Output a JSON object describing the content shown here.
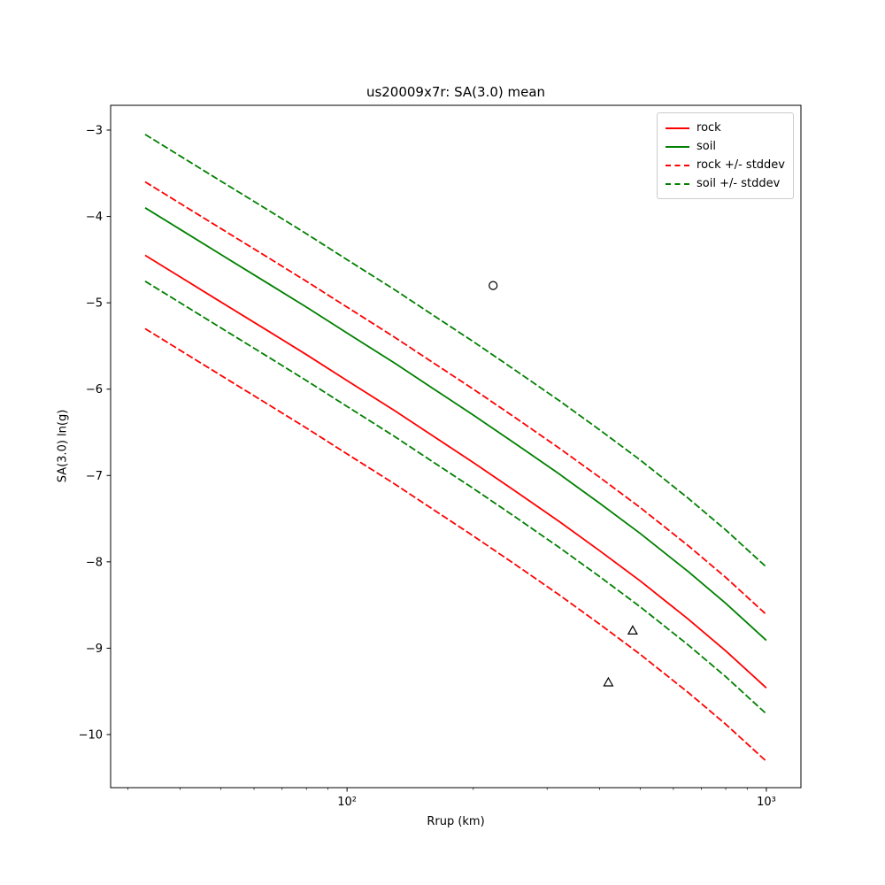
{
  "chart_data": {
    "type": "line",
    "title": "us20009x7r: SA(3.0) mean",
    "xlabel": "Rrup (km)",
    "ylabel": "SA(3.0) ln(g)",
    "x_scale": "log",
    "grid": false,
    "xlim": [
      27.3,
      1209
    ],
    "ylim": [
      -10.615,
      -2.713
    ],
    "x": [
      33,
      40,
      50,
      65,
      80,
      100,
      130,
      160,
      200,
      250,
      320,
      400,
      500,
      650,
      800,
      1000
    ],
    "series": [
      {
        "name": "rock",
        "color": "#ff0000",
        "style": "solid",
        "values": [
          -4.45,
          -4.7,
          -4.99,
          -5.33,
          -5.6,
          -5.9,
          -6.25,
          -6.54,
          -6.85,
          -7.17,
          -7.53,
          -7.87,
          -8.22,
          -8.66,
          -9.03,
          -9.46
        ]
      },
      {
        "name": "soil",
        "color": "#008000",
        "style": "solid",
        "values": [
          -3.9,
          -4.15,
          -4.44,
          -4.78,
          -5.05,
          -5.35,
          -5.7,
          -5.99,
          -6.3,
          -6.62,
          -6.98,
          -7.32,
          -7.67,
          -8.11,
          -8.48,
          -8.91
        ]
      },
      {
        "name": "rock + stddev",
        "color": "#ff0000",
        "style": "dashed",
        "values": [
          -3.6,
          -3.85,
          -4.14,
          -4.48,
          -4.75,
          -5.05,
          -5.4,
          -5.69,
          -6.0,
          -6.32,
          -6.68,
          -7.02,
          -7.37,
          -7.81,
          -8.18,
          -8.61
        ]
      },
      {
        "name": "rock - stddev",
        "color": "#ff0000",
        "style": "dashed",
        "values": [
          -5.3,
          -5.55,
          -5.84,
          -6.18,
          -6.45,
          -6.75,
          -7.1,
          -7.39,
          -7.7,
          -8.02,
          -8.38,
          -8.72,
          -9.07,
          -9.51,
          -9.88,
          -10.31
        ]
      },
      {
        "name": "soil + stddev",
        "color": "#008000",
        "style": "dashed",
        "values": [
          -3.05,
          -3.3,
          -3.59,
          -3.93,
          -4.2,
          -4.5,
          -4.85,
          -5.14,
          -5.45,
          -5.77,
          -6.13,
          -6.47,
          -6.82,
          -7.26,
          -7.63,
          -8.06
        ]
      },
      {
        "name": "soil - stddev",
        "color": "#008000",
        "style": "dashed",
        "values": [
          -4.75,
          -5.0,
          -5.29,
          -5.63,
          -5.9,
          -6.2,
          -6.55,
          -6.84,
          -7.15,
          -7.47,
          -7.83,
          -8.17,
          -8.52,
          -8.96,
          -9.33,
          -9.76
        ]
      }
    ],
    "markers": [
      {
        "shape": "circle",
        "x": 223,
        "y": -4.8
      },
      {
        "shape": "triangle-up",
        "x": 480,
        "y": -8.8
      },
      {
        "shape": "triangle-up",
        "x": 420,
        "y": -9.4
      }
    ],
    "y_ticks": [
      {
        "value": -3,
        "label": "−3"
      },
      {
        "value": -4,
        "label": "−4"
      },
      {
        "value": -5,
        "label": "−5"
      },
      {
        "value": -6,
        "label": "−6"
      },
      {
        "value": -7,
        "label": "−7"
      },
      {
        "value": -8,
        "label": "−8"
      },
      {
        "value": -9,
        "label": "−9"
      },
      {
        "value": -10,
        "label": "−10"
      }
    ],
    "x_major_ticks": [
      {
        "value": 100,
        "label": "10²"
      },
      {
        "value": 1000,
        "label": "10³"
      }
    ],
    "x_minor_ticks": [
      30,
      40,
      50,
      60,
      70,
      80,
      90,
      200,
      300,
      400,
      500,
      600,
      700,
      800,
      900
    ],
    "legend": {
      "position": "upper right",
      "entries": [
        {
          "label": "rock",
          "color": "#ff0000",
          "style": "solid"
        },
        {
          "label": "soil",
          "color": "#008000",
          "style": "solid"
        },
        {
          "label": "rock +/- stddev",
          "color": "#ff0000",
          "style": "dashed"
        },
        {
          "label": "soil +/- stddev",
          "color": "#008000",
          "style": "dashed"
        }
      ]
    }
  }
}
